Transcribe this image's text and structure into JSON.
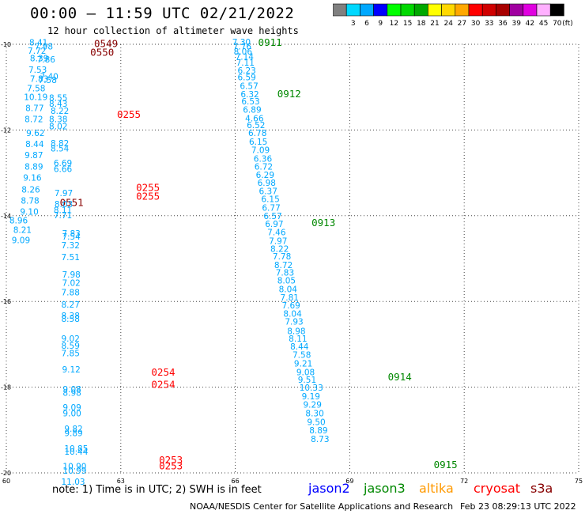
{
  "header": {
    "title": "00:00 – 11:59 UTC 02/21/2022",
    "subtitle": "12 hour collection of altimeter wave heights"
  },
  "colorbar": {
    "ticks": [
      "3",
      "6",
      "9",
      "12",
      "15",
      "18",
      "21",
      "24",
      "27",
      "30",
      "33",
      "36",
      "39",
      "42",
      "45",
      "70"
    ],
    "unit": "(ft)",
    "colors": [
      "#808080",
      "#00d8ff",
      "#00a8ff",
      "#0000ff",
      "#00ff00",
      "#00d800",
      "#00a800",
      "#ffff00",
      "#ffd800",
      "#ffa800",
      "#ff0000",
      "#d00000",
      "#a80000",
      "#a000a0",
      "#e000e0",
      "#ffb0ff",
      "#000000"
    ]
  },
  "note": "note:  1) Time is in UTC;  2) SWH is in feet",
  "legend": [
    {
      "name": "jason2",
      "color": "#0000ff"
    },
    {
      "name": "jason3",
      "color": "#008800"
    },
    {
      "name": "altika",
      "color": "#ff9900"
    },
    {
      "name": "cryosat",
      "color": "#ff0000"
    },
    {
      "name": "s3a",
      "color": "#880000"
    }
  ],
  "footer": {
    "credit": "NOAA/NESDIS Center for Satellite Applications and Research",
    "timestamp": "Feb 23 08:29:13 UTC 2022"
  },
  "chart_data": {
    "type": "scatter",
    "title": "00:00 – 11:59 UTC 02/21/2022",
    "xlim": [
      60,
      75
    ],
    "ylim": [
      -20,
      -10
    ],
    "x_ticks": [
      "60",
      "63",
      "66",
      "69",
      "72",
      "75"
    ],
    "y_ticks": [
      "-10",
      "-12",
      "-14",
      "-16",
      "-18",
      "-20"
    ],
    "grid": true,
    "series": [
      {
        "name": "s3a",
        "color": "#880000",
        "time_labels": [
          {
            "x": 62.3,
            "y": -10.06,
            "label": "0549"
          },
          {
            "x": 62.2,
            "y": -10.27,
            "label": "0550"
          },
          {
            "x": 61.4,
            "y": -13.77,
            "label": "0551"
          }
        ],
        "points": []
      },
      {
        "name": "cryosat",
        "color": "#ff0000",
        "time_labels": [
          {
            "x": 62.9,
            "y": -11.72,
            "label": "0255"
          },
          {
            "x": 63.4,
            "y": -13.42,
            "label": "0255"
          },
          {
            "x": 63.4,
            "y": -13.63,
            "label": "0255"
          },
          {
            "x": 63.8,
            "y": -17.73,
            "label": "0254"
          },
          {
            "x": 63.8,
            "y": -18.02,
            "label": "0254"
          },
          {
            "x": 64.0,
            "y": -19.78,
            "label": "0253"
          },
          {
            "x": 64.0,
            "y": -19.92,
            "label": "0253"
          }
        ],
        "points": []
      },
      {
        "name": "jason3",
        "color": "#008800",
        "time_labels": [
          {
            "x": 66.6,
            "y": -10.04,
            "label": "0911"
          },
          {
            "x": 67.1,
            "y": -11.24,
            "label": "0912"
          },
          {
            "x": 68.0,
            "y": -14.24,
            "label": "0913"
          },
          {
            "x": 70.0,
            "y": -17.84,
            "label": "0914"
          },
          {
            "x": 71.2,
            "y": -19.89,
            "label": "0915"
          }
        ],
        "points": []
      },
      {
        "name": "jason3-swh",
        "color": "#00a8ff",
        "time_labels": [],
        "points": [
          {
            "x": 65.92,
            "y": -10.02,
            "v": "7.30"
          },
          {
            "x": 65.94,
            "y": -10.12,
            "v": "7.76"
          },
          {
            "x": 65.96,
            "y": -10.24,
            "v": "8.06"
          },
          {
            "x": 66.0,
            "y": -10.36,
            "v": "7.14"
          },
          {
            "x": 66.02,
            "y": -10.5,
            "v": "7.11"
          },
          {
            "x": 66.06,
            "y": -10.68,
            "v": "6.23"
          },
          {
            "x": 66.06,
            "y": -10.84,
            "v": "6.59"
          },
          {
            "x": 66.12,
            "y": -11.04,
            "v": "6.57"
          },
          {
            "x": 66.14,
            "y": -11.24,
            "v": "6.32"
          },
          {
            "x": 66.16,
            "y": -11.4,
            "v": "6.53"
          },
          {
            "x": 66.2,
            "y": -11.6,
            "v": "6.89"
          },
          {
            "x": 66.26,
            "y": -11.8,
            "v": "4.66"
          },
          {
            "x": 66.3,
            "y": -11.96,
            "v": "6.52"
          },
          {
            "x": 66.34,
            "y": -12.14,
            "v": "6.78"
          },
          {
            "x": 66.36,
            "y": -12.34,
            "v": "6.15"
          },
          {
            "x": 66.42,
            "y": -12.54,
            "v": "7.09"
          },
          {
            "x": 66.48,
            "y": -12.74,
            "v": "6.36"
          },
          {
            "x": 66.5,
            "y": -12.92,
            "v": "6.72"
          },
          {
            "x": 66.54,
            "y": -13.12,
            "v": "6.29"
          },
          {
            "x": 66.58,
            "y": -13.3,
            "v": "6.98"
          },
          {
            "x": 66.62,
            "y": -13.5,
            "v": "6.37"
          },
          {
            "x": 66.68,
            "y": -13.68,
            "v": "6.15"
          },
          {
            "x": 66.7,
            "y": -13.88,
            "v": "6.77"
          },
          {
            "x": 66.74,
            "y": -14.08,
            "v": "6.57"
          },
          {
            "x": 66.78,
            "y": -14.26,
            "v": "6.97"
          },
          {
            "x": 66.84,
            "y": -14.46,
            "v": "7.46"
          },
          {
            "x": 66.88,
            "y": -14.66,
            "v": "7.97"
          },
          {
            "x": 66.92,
            "y": -14.84,
            "v": "8.22"
          },
          {
            "x": 66.98,
            "y": -15.02,
            "v": "7.78"
          },
          {
            "x": 67.02,
            "y": -15.22,
            "v": "8.72"
          },
          {
            "x": 67.06,
            "y": -15.4,
            "v": "7.83"
          },
          {
            "x": 67.1,
            "y": -15.58,
            "v": "8.05"
          },
          {
            "x": 67.14,
            "y": -15.78,
            "v": "8.04"
          },
          {
            "x": 67.18,
            "y": -15.98,
            "v": "7.81"
          },
          {
            "x": 67.22,
            "y": -16.16,
            "v": "7.69"
          },
          {
            "x": 67.26,
            "y": -16.36,
            "v": "8.04"
          },
          {
            "x": 67.3,
            "y": -16.54,
            "v": "7.93"
          },
          {
            "x": 67.36,
            "y": -16.76,
            "v": "8.98"
          },
          {
            "x": 67.4,
            "y": -16.94,
            "v": "8.11"
          },
          {
            "x": 67.44,
            "y": -17.12,
            "v": "8.44"
          },
          {
            "x": 67.5,
            "y": -17.32,
            "v": "7.58"
          },
          {
            "x": 67.54,
            "y": -17.52,
            "v": "9.21"
          },
          {
            "x": 67.6,
            "y": -17.72,
            "v": "9.08"
          },
          {
            "x": 67.64,
            "y": -17.9,
            "v": "9.51"
          },
          {
            "x": 67.68,
            "y": -18.08,
            "v": "10.33"
          },
          {
            "x": 67.74,
            "y": -18.28,
            "v": "9.19"
          },
          {
            "x": 67.78,
            "y": -18.48,
            "v": "9.29"
          },
          {
            "x": 67.84,
            "y": -18.68,
            "v": "8.30"
          },
          {
            "x": 67.88,
            "y": -18.88,
            "v": "9.50"
          },
          {
            "x": 67.94,
            "y": -19.08,
            "v": "8.89"
          },
          {
            "x": 67.98,
            "y": -19.28,
            "v": "8.73"
          }
        ]
      },
      {
        "name": "west-track-swh",
        "color": "#00a8ff",
        "time_labels": [],
        "points": [
          {
            "x": 60.6,
            "y": -10.03,
            "v": "8.41"
          },
          {
            "x": 60.74,
            "y": -10.12,
            "v": "7.98"
          },
          {
            "x": 60.56,
            "y": -10.22,
            "v": "7.72"
          },
          {
            "x": 60.62,
            "y": -10.4,
            "v": "8.39"
          },
          {
            "x": 60.8,
            "y": -10.42,
            "v": "7.86"
          },
          {
            "x": 60.58,
            "y": -10.66,
            "v": "7.53"
          },
          {
            "x": 60.88,
            "y": -10.82,
            "v": "7.40"
          },
          {
            "x": 60.62,
            "y": -10.88,
            "v": "7.83"
          },
          {
            "x": 60.84,
            "y": -10.9,
            "v": "7.58"
          },
          {
            "x": 60.54,
            "y": -11.1,
            "v": "7.58"
          },
          {
            "x": 60.46,
            "y": -11.3,
            "v": "10.19"
          },
          {
            "x": 61.12,
            "y": -11.32,
            "v": "8.55"
          },
          {
            "x": 60.5,
            "y": -11.56,
            "v": "8.77"
          },
          {
            "x": 61.12,
            "y": -11.46,
            "v": "8.43"
          },
          {
            "x": 61.16,
            "y": -11.62,
            "v": "8.22"
          },
          {
            "x": 60.48,
            "y": -11.82,
            "v": "8.72"
          },
          {
            "x": 61.12,
            "y": -11.82,
            "v": "8.38"
          },
          {
            "x": 61.12,
            "y": -11.98,
            "v": "8.02"
          },
          {
            "x": 60.52,
            "y": -12.14,
            "v": "9.62"
          },
          {
            "x": 61.16,
            "y": -12.38,
            "v": "8.82"
          },
          {
            "x": 60.5,
            "y": -12.4,
            "v": "8.44"
          },
          {
            "x": 61.16,
            "y": -12.5,
            "v": "8.54"
          },
          {
            "x": 60.48,
            "y": -12.66,
            "v": "9.87"
          },
          {
            "x": 61.24,
            "y": -12.84,
            "v": "6.69"
          },
          {
            "x": 60.48,
            "y": -12.92,
            "v": "8.89"
          },
          {
            "x": 61.24,
            "y": -12.98,
            "v": "6.66"
          },
          {
            "x": 60.44,
            "y": -13.18,
            "v": "9.16"
          },
          {
            "x": 60.4,
            "y": -13.46,
            "v": "8.26"
          },
          {
            "x": 61.26,
            "y": -13.54,
            "v": "7.97"
          },
          {
            "x": 60.38,
            "y": -13.72,
            "v": "8.78"
          },
          {
            "x": 61.26,
            "y": -13.8,
            "v": "8.03"
          },
          {
            "x": 60.36,
            "y": -13.98,
            "v": "9.10"
          },
          {
            "x": 61.24,
            "y": -13.94,
            "v": "8.11"
          },
          {
            "x": 61.24,
            "y": -14.06,
            "v": "7.71"
          },
          {
            "x": 60.08,
            "y": -14.18,
            "v": "8.96"
          },
          {
            "x": 60.18,
            "y": -14.4,
            "v": "8.21"
          },
          {
            "x": 61.46,
            "y": -14.48,
            "v": "7.83"
          },
          {
            "x": 61.46,
            "y": -14.56,
            "v": "7.54"
          },
          {
            "x": 60.14,
            "y": -14.64,
            "v": "9.09"
          },
          {
            "x": 61.44,
            "y": -14.76,
            "v": "7.32"
          },
          {
            "x": 61.44,
            "y": -15.04,
            "v": "7.51"
          },
          {
            "x": 61.46,
            "y": -15.44,
            "v": "7.98"
          },
          {
            "x": 61.46,
            "y": -15.64,
            "v": "7.02"
          },
          {
            "x": 61.44,
            "y": -15.86,
            "v": "7.88"
          },
          {
            "x": 61.44,
            "y": -16.14,
            "v": "8.27"
          },
          {
            "x": 61.44,
            "y": -16.4,
            "v": "8.38"
          },
          {
            "x": 61.44,
            "y": -16.48,
            "v": "8.58"
          },
          {
            "x": 61.44,
            "y": -16.94,
            "v": "9.02"
          },
          {
            "x": 61.44,
            "y": -17.1,
            "v": "8.59"
          },
          {
            "x": 61.44,
            "y": -17.28,
            "v": "7.85"
          },
          {
            "x": 61.46,
            "y": -17.66,
            "v": "9.12"
          },
          {
            "x": 61.48,
            "y": -18.12,
            "v": "9.08"
          },
          {
            "x": 61.48,
            "y": -18.2,
            "v": "8.98"
          },
          {
            "x": 61.48,
            "y": -18.54,
            "v": "9.09"
          },
          {
            "x": 61.48,
            "y": -18.68,
            "v": "9.00"
          },
          {
            "x": 61.52,
            "y": -19.04,
            "v": "9.82"
          },
          {
            "x": 61.52,
            "y": -19.14,
            "v": "9.89"
          },
          {
            "x": 61.52,
            "y": -19.5,
            "v": "10.85"
          },
          {
            "x": 61.52,
            "y": -19.58,
            "v": "10.44"
          },
          {
            "x": 61.48,
            "y": -19.92,
            "v": "10.90"
          },
          {
            "x": 61.48,
            "y": -20.02,
            "v": "10.99"
          },
          {
            "x": 61.44,
            "y": -20.28,
            "v": "11.03"
          }
        ]
      }
    ]
  }
}
